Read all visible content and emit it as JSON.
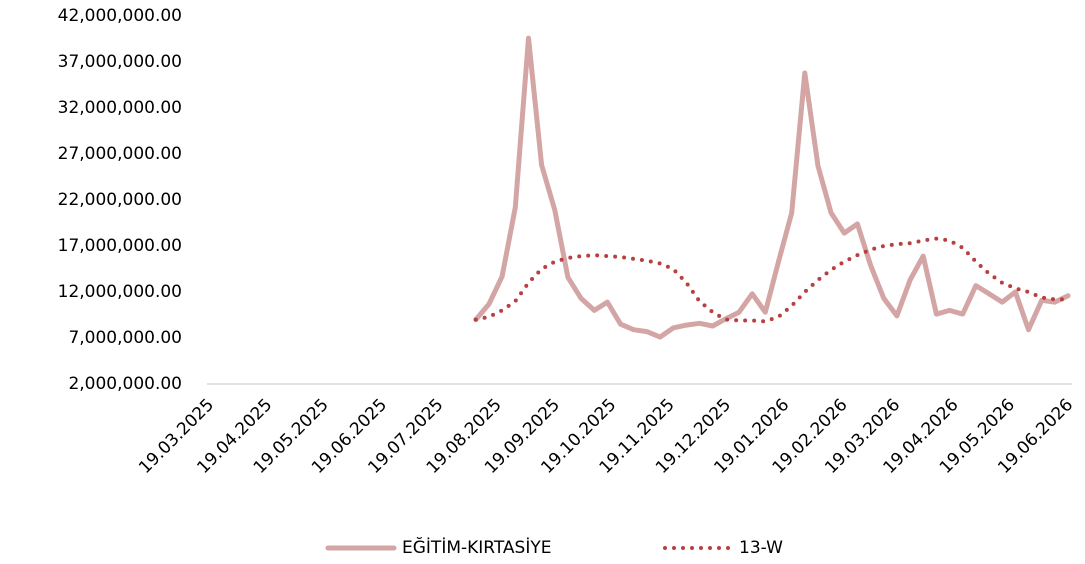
{
  "chart_data": {
    "type": "line",
    "x": [
      "09.08.2025",
      "16.08.2025",
      "23.08.2025",
      "30.08.2025",
      "06.09.2025",
      "13.09.2025",
      "20.09.2025",
      "27.09.2025",
      "04.10.2025",
      "11.10.2025",
      "18.10.2025",
      "25.10.2025",
      "01.11.2025",
      "08.11.2025",
      "15.11.2025",
      "22.11.2025",
      "29.11.2025",
      "06.12.2025",
      "13.12.2025",
      "20.12.2025",
      "27.12.2025",
      "03.01.2026",
      "10.01.2026",
      "17.01.2026",
      "24.01.2026",
      "31.01.2026",
      "07.02.2026",
      "14.02.2026",
      "21.02.2026",
      "28.02.2026",
      "07.03.2026",
      "14.03.2026",
      "21.03.2026",
      "28.03.2026",
      "04.04.2026",
      "11.04.2026",
      "18.04.2026",
      "25.04.2026",
      "02.05.2026",
      "09.05.2026",
      "16.05.2026",
      "23.05.2026",
      "30.05.2026",
      "06.06.2026",
      "13.06.2026",
      "20.06.2026"
    ],
    "series": [
      {
        "name": "EĞİTİM-KIRTASİYE",
        "color": "#d4a5a5",
        "style": "solid",
        "values": [
          9000000,
          10700000,
          13700000,
          21200000,
          39600000,
          25800000,
          20900000,
          13600000,
          11300000,
          10000000,
          10900000,
          8500000,
          7900000,
          7700000,
          7100000,
          8100000,
          8400000,
          8600000,
          8300000,
          9100000,
          9800000,
          11800000,
          9800000,
          15300000,
          20600000,
          35800000,
          25700000,
          20600000,
          18400000,
          19400000,
          14900000,
          11300000,
          9400000,
          13300000,
          15900000,
          9600000,
          10000000,
          9600000,
          12700000,
          11800000,
          10900000,
          12000000,
          7900000,
          11100000,
          10900000,
          11600000
        ]
      },
      {
        "name": "13-W",
        "color": "#b84040",
        "style": "dotted",
        "values": [
          9000000,
          9300000,
          10000000,
          11000000,
          13000000,
          14500000,
          15300000,
          15700000,
          15900000,
          16000000,
          15900000,
          15800000,
          15600000,
          15400000,
          15100000,
          14500000,
          13000000,
          11000000,
          9800000,
          9000000,
          8900000,
          8900000,
          8800000,
          9300000,
          10500000,
          12000000,
          13300000,
          14400000,
          15300000,
          16000000,
          16600000,
          17000000,
          17200000,
          17300000,
          17600000,
          17800000,
          17600000,
          16800000,
          15300000,
          14000000,
          13000000,
          12400000,
          12000000,
          11400000,
          11200000,
          11200000
        ]
      }
    ],
    "xlim": [
      "19.03.2025",
      "20.06.2026"
    ],
    "xticks": [
      "19.03.2025",
      "19.04.2025",
      "19.05.2025",
      "19.06.2025",
      "19.07.2025",
      "19.08.2025",
      "19.09.2025",
      "19.10.2025",
      "19.11.2025",
      "19.12.2025",
      "19.01.2026",
      "19.02.2026",
      "19.03.2026",
      "19.04.2026",
      "19.05.2026",
      "19.06.2026"
    ],
    "ylim": [
      2000000,
      42000000
    ],
    "yticks": [
      {
        "value": 2000000,
        "label": "2,000,000.00"
      },
      {
        "value": 7000000,
        "label": "7,000,000.00"
      },
      {
        "value": 12000000,
        "label": "12,000,000.00"
      },
      {
        "value": 17000000,
        "label": "17,000,000.00"
      },
      {
        "value": 22000000,
        "label": "22,000,000.00"
      },
      {
        "value": 27000000,
        "label": "27,000,000.00"
      },
      {
        "value": 32000000,
        "label": "32,000,000.00"
      },
      {
        "value": 37000000,
        "label": "37,000,000.00"
      },
      {
        "value": 42000000,
        "label": "42,000,000.00"
      }
    ],
    "legend": "bottom"
  }
}
